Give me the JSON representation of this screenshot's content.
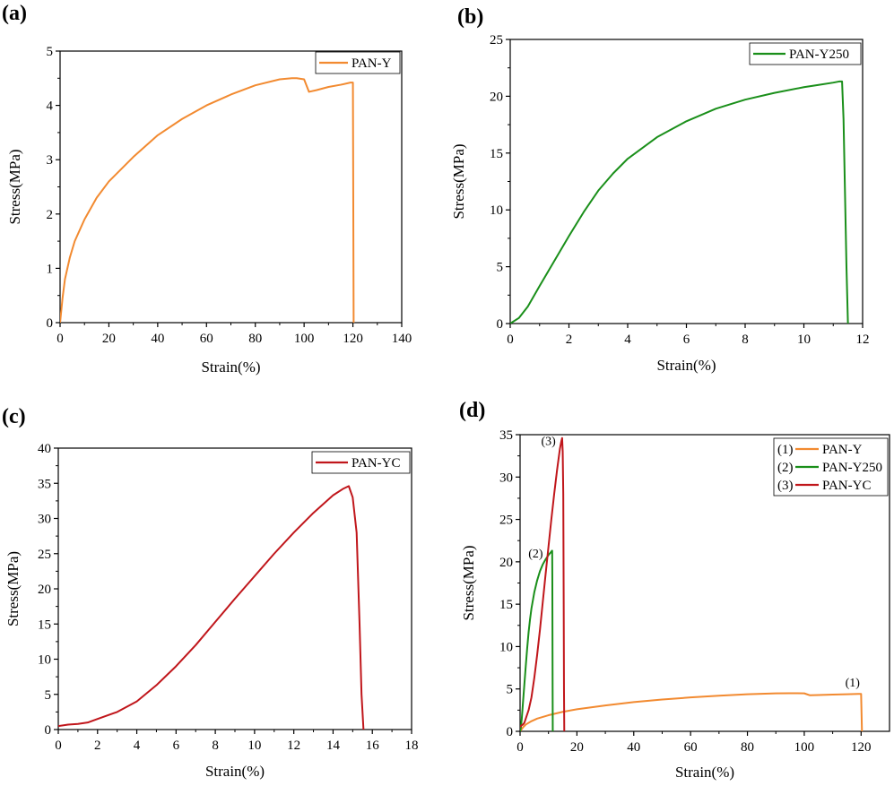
{
  "chart_data": [
    {
      "panel": "(a)",
      "type": "line",
      "xlabel": "Strain(%)",
      "ylabel": "Stress(MPa)",
      "xlim": [
        0,
        140
      ],
      "ylim": [
        0,
        5
      ],
      "xticks": [
        0,
        20,
        40,
        60,
        80,
        100,
        120,
        140
      ],
      "yticks": [
        0,
        1,
        2,
        3,
        4,
        5
      ],
      "xtick_labels": [
        "0",
        "20",
        "40",
        "60",
        "80",
        "100",
        "120",
        "140"
      ],
      "ytick_labels": [
        "0",
        "1",
        "2",
        "3",
        "4",
        "5"
      ],
      "legend": "top-right",
      "grid": false,
      "series": [
        {
          "name": "PAN-Y",
          "color": "#f28a30",
          "x": [
            0,
            1,
            2,
            4,
            6,
            10,
            15,
            20,
            30,
            40,
            50,
            60,
            70,
            80,
            90,
            95,
            97,
            100,
            102,
            105,
            110,
            115,
            119,
            120,
            120.3
          ],
          "y": [
            0,
            0.45,
            0.8,
            1.2,
            1.5,
            1.9,
            2.3,
            2.6,
            3.05,
            3.45,
            3.75,
            4.0,
            4.2,
            4.37,
            4.48,
            4.5,
            4.5,
            4.48,
            4.25,
            4.28,
            4.34,
            4.38,
            4.42,
            4.42,
            0
          ]
        }
      ]
    },
    {
      "panel": "(b)",
      "type": "line",
      "xlabel": "Strain(%)",
      "ylabel": "Stress(MPa)",
      "xlim": [
        0,
        12
      ],
      "ylim": [
        0,
        25
      ],
      "xticks": [
        0,
        2,
        4,
        6,
        8,
        10,
        12
      ],
      "yticks": [
        0,
        5,
        10,
        15,
        20,
        25
      ],
      "xtick_labels": [
        "0",
        "2",
        "4",
        "6",
        "8",
        "10",
        "12"
      ],
      "ytick_labels": [
        "0",
        "5",
        "10",
        "15",
        "20",
        "25"
      ],
      "legend": "top-right",
      "grid": false,
      "series": [
        {
          "name": "PAN-Y250",
          "color": "#1a8f1a",
          "x": [
            0,
            0.3,
            0.6,
            1,
            1.5,
            2,
            2.5,
            3,
            3.5,
            4,
            5,
            6,
            7,
            8,
            9,
            10,
            10.5,
            11,
            11.2,
            11.3,
            11.35,
            11.45,
            11.5
          ],
          "y": [
            0,
            0.5,
            1.5,
            3.3,
            5.5,
            7.7,
            9.8,
            11.7,
            13.2,
            14.5,
            16.4,
            17.8,
            18.9,
            19.7,
            20.3,
            20.8,
            21.0,
            21.2,
            21.3,
            21.3,
            18.0,
            5.0,
            0
          ]
        }
      ]
    },
    {
      "panel": "(c)",
      "type": "line",
      "xlabel": "Strain(%)",
      "ylabel": "Stress(MPa)",
      "xlim": [
        0,
        18
      ],
      "ylim": [
        0,
        40
      ],
      "xticks": [
        0,
        2,
        4,
        6,
        8,
        10,
        12,
        14,
        16,
        18
      ],
      "yticks": [
        0,
        5,
        10,
        15,
        20,
        25,
        30,
        35,
        40
      ],
      "xtick_labels": [
        "0",
        "2",
        "4",
        "6",
        "8",
        "10",
        "12",
        "14",
        "16",
        "18"
      ],
      "ytick_labels": [
        "0",
        "5",
        "10",
        "15",
        "20",
        "25",
        "30",
        "35",
        "40"
      ],
      "legend": "top-right",
      "grid": false,
      "series": [
        {
          "name": "PAN-YC",
          "color": "#c0161b",
          "x": [
            0,
            0.5,
            1,
            1.5,
            2,
            3,
            4,
            5,
            6,
            7,
            8,
            9,
            10,
            11,
            12,
            13,
            14,
            14.5,
            14.8,
            15.0,
            15.2,
            15.35,
            15.45,
            15.55
          ],
          "y": [
            0.5,
            0.7,
            0.8,
            1.0,
            1.5,
            2.5,
            4.0,
            6.3,
            9.0,
            12.0,
            15.3,
            18.6,
            21.8,
            25.0,
            28.0,
            30.8,
            33.3,
            34.2,
            34.6,
            33.0,
            28.0,
            15.0,
            5.0,
            0
          ]
        }
      ]
    },
    {
      "panel": "(d)",
      "type": "line",
      "xlabel": "Strain(%)",
      "ylabel": "Stress(MPa)",
      "xlim": [
        0,
        130
      ],
      "ylim": [
        0,
        35
      ],
      "xticks": [
        0,
        20,
        40,
        60,
        80,
        100,
        120
      ],
      "yticks": [
        0,
        5,
        10,
        15,
        20,
        25,
        30,
        35
      ],
      "xtick_labels": [
        "0",
        "20",
        "40",
        "60",
        "80",
        "100",
        "120"
      ],
      "ytick_labels": [
        "0",
        "5",
        "10",
        "15",
        "20",
        "25",
        "30",
        "35"
      ],
      "legend": "top-right",
      "grid": false,
      "annotations": [
        {
          "text": "(1)",
          "x": 117,
          "y": 5.3
        },
        {
          "text": "(2)",
          "x": 5.5,
          "y": 20.5
        },
        {
          "text": "(3)",
          "x": 10,
          "y": 33.8
        }
      ],
      "series": [
        {
          "name": "(1)    PAN-Y",
          "color": "#f28a30",
          "x": [
            0,
            1,
            2,
            4,
            6,
            10,
            15,
            20,
            30,
            40,
            50,
            60,
            70,
            80,
            90,
            95,
            97,
            100,
            102,
            105,
            110,
            115,
            119,
            120,
            120.3
          ],
          "y": [
            0,
            0.45,
            0.8,
            1.2,
            1.5,
            1.9,
            2.3,
            2.6,
            3.05,
            3.45,
            3.75,
            4.0,
            4.2,
            4.37,
            4.48,
            4.5,
            4.5,
            4.48,
            4.25,
            4.28,
            4.34,
            4.38,
            4.42,
            4.42,
            0
          ]
        },
        {
          "name": "(2)    PAN-Y250",
          "color": "#1a8f1a",
          "x": [
            0,
            0.3,
            0.6,
            1,
            1.5,
            2,
            2.5,
            3,
            3.5,
            4,
            5,
            6,
            7,
            8,
            9,
            10,
            10.5,
            11,
            11.2,
            11.3,
            11.35,
            11.45,
            11.5
          ],
          "y": [
            0,
            0.5,
            1.5,
            3.3,
            5.5,
            7.7,
            9.8,
            11.7,
            13.2,
            14.5,
            16.4,
            17.8,
            18.9,
            19.7,
            20.3,
            20.8,
            21.0,
            21.2,
            21.3,
            21.3,
            18.0,
            5.0,
            0
          ]
        },
        {
          "name": "(3)    PAN-YC",
          "color": "#c0161b",
          "x": [
            0,
            0.5,
            1,
            1.5,
            2,
            3,
            4,
            5,
            6,
            7,
            8,
            9,
            10,
            11,
            12,
            13,
            14,
            14.5,
            14.8,
            15.0,
            15.2,
            15.35,
            15.45,
            15.55
          ],
          "y": [
            0.5,
            0.7,
            0.8,
            1.0,
            1.5,
            2.5,
            4.0,
            6.3,
            9.0,
            12.0,
            15.3,
            18.6,
            21.8,
            25.0,
            28.0,
            30.8,
            33.3,
            34.2,
            34.6,
            33.0,
            28.0,
            15.0,
            5.0,
            0
          ]
        }
      ]
    }
  ]
}
